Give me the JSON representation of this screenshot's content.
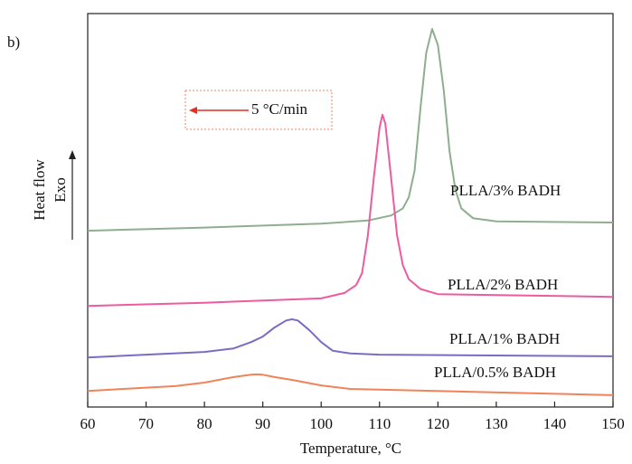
{
  "chart_data": {
    "type": "line",
    "panel_label": "b)",
    "x_label": "Temperature, °C",
    "y_label": "Heat flow",
    "y_direction_label": "Exo",
    "annotation": "5 °C/min",
    "xlim": [
      60,
      150
    ],
    "xticks": [
      60,
      70,
      80,
      90,
      100,
      110,
      120,
      130,
      140,
      150
    ],
    "ylim": [
      0,
      100
    ],
    "series": [
      {
        "name": "PLLA/3% BADH",
        "color": "#8fae8f",
        "x": [
          60,
          80,
          100,
          108,
          112,
          114,
          115,
          116,
          117,
          118,
          119,
          120,
          121,
          122,
          123,
          124,
          126,
          130,
          150
        ],
        "values": [
          44.8,
          45.6,
          46.6,
          47.4,
          48.7,
          50.5,
          53.3,
          60,
          75.9,
          90,
          96.1,
          92,
          80.5,
          65,
          55.2,
          50.5,
          48,
          47.2,
          46.9
        ]
      },
      {
        "name": "PLLA/2% BADH",
        "color": "#ec5c9e",
        "x": [
          60,
          80,
          100,
          104,
          106,
          107,
          108,
          109,
          110,
          110.5,
          111,
          112,
          113,
          114,
          115,
          117,
          120,
          150
        ],
        "values": [
          25.7,
          26.5,
          27.6,
          29,
          31,
          34,
          43.7,
          58,
          71,
          74.3,
          72,
          58,
          43.7,
          36,
          32.5,
          30,
          28.7,
          28.0
        ]
      },
      {
        "name": "PLLA/1% BADH",
        "color": "#7a6cc4",
        "x": [
          60,
          80,
          85,
          88,
          90,
          92,
          94,
          95,
          96,
          98,
          100,
          102,
          105,
          110,
          150
        ],
        "values": [
          12.6,
          14,
          14.9,
          16.5,
          17.9,
          20.2,
          22,
          22.3,
          22,
          19.5,
          16.5,
          14.3,
          13.6,
          13.3,
          12.9
        ]
      },
      {
        "name": "PLLA/0.5% BADH",
        "color": "#f08458",
        "x": [
          60,
          75,
          80,
          85,
          88,
          89,
          90,
          92,
          95,
          100,
          105,
          150
        ],
        "values": [
          4.1,
          5.3,
          6.2,
          7.6,
          8.2,
          8.3,
          8.2,
          7.6,
          6.9,
          5.5,
          4.6,
          3.0
        ]
      }
    ]
  }
}
